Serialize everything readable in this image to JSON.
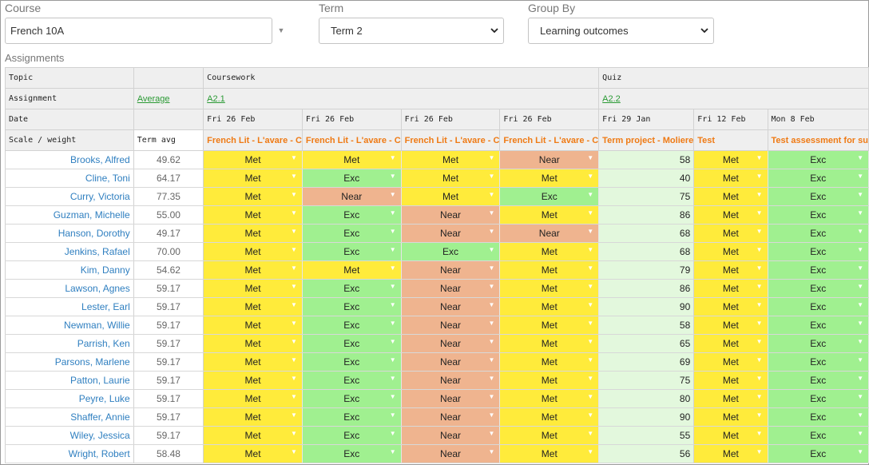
{
  "filters": {
    "course_label": "Course",
    "course_value": "French 10A",
    "term_label": "Term",
    "term_value": "Term 2",
    "group_label": "Group By",
    "group_value": "Learning outcomes"
  },
  "section_title": "Assignments",
  "header": {
    "topic_label": "Topic",
    "assignment_label": "Assignment",
    "date_label": "Date",
    "scale_label": "Scale / weight",
    "average_link": "Average",
    "term_avg_label": "Term avg",
    "topics": [
      "Coursework",
      "Quiz"
    ],
    "assignment_links": [
      "A2.1",
      "A2.2"
    ],
    "dates": [
      "Fri 26 Feb",
      "Fri 26 Feb",
      "Fri 26 Feb",
      "Fri 26 Feb",
      "Fri 29 Jan",
      "Fri 12 Feb",
      "Mon 8 Feb"
    ],
    "scales": [
      "French Lit - L'avare - C",
      "French Lit - L'avare - C",
      "French Lit - L'avare - C",
      "French Lit - L'avare - C",
      "Term project - Moliere",
      "Test",
      "Test assessment for su"
    ]
  },
  "students": [
    {
      "name": "Brooks, Alfred",
      "avg": "49.62",
      "g": [
        "Met",
        "Met",
        "Met",
        "Near"
      ],
      "score": "58",
      "t": [
        "Met",
        "Exc"
      ]
    },
    {
      "name": "Cline, Toni",
      "avg": "64.17",
      "g": [
        "Met",
        "Exc",
        "Met",
        "Met"
      ],
      "score": "40",
      "t": [
        "Met",
        "Exc"
      ]
    },
    {
      "name": "Curry, Victoria",
      "avg": "77.35",
      "g": [
        "Met",
        "Near",
        "Met",
        "Exc"
      ],
      "score": "75",
      "t": [
        "Met",
        "Exc"
      ]
    },
    {
      "name": "Guzman, Michelle",
      "avg": "55.00",
      "g": [
        "Met",
        "Exc",
        "Near",
        "Met"
      ],
      "score": "86",
      "t": [
        "Met",
        "Exc"
      ]
    },
    {
      "name": "Hanson, Dorothy",
      "avg": "49.17",
      "g": [
        "Met",
        "Exc",
        "Near",
        "Near"
      ],
      "score": "68",
      "t": [
        "Met",
        "Exc"
      ]
    },
    {
      "name": "Jenkins, Rafael",
      "avg": "70.00",
      "g": [
        "Met",
        "Exc",
        "Exc",
        "Met"
      ],
      "score": "68",
      "t": [
        "Met",
        "Exc"
      ]
    },
    {
      "name": "Kim, Danny",
      "avg": "54.62",
      "g": [
        "Met",
        "Met",
        "Near",
        "Met"
      ],
      "score": "79",
      "t": [
        "Met",
        "Exc"
      ]
    },
    {
      "name": "Lawson, Agnes",
      "avg": "59.17",
      "g": [
        "Met",
        "Exc",
        "Near",
        "Met"
      ],
      "score": "86",
      "t": [
        "Met",
        "Exc"
      ]
    },
    {
      "name": "Lester, Earl",
      "avg": "59.17",
      "g": [
        "Met",
        "Exc",
        "Near",
        "Met"
      ],
      "score": "90",
      "t": [
        "Met",
        "Exc"
      ]
    },
    {
      "name": "Newman, Willie",
      "avg": "59.17",
      "g": [
        "Met",
        "Exc",
        "Near",
        "Met"
      ],
      "score": "58",
      "t": [
        "Met",
        "Exc"
      ]
    },
    {
      "name": "Parrish, Ken",
      "avg": "59.17",
      "g": [
        "Met",
        "Exc",
        "Near",
        "Met"
      ],
      "score": "65",
      "t": [
        "Met",
        "Exc"
      ]
    },
    {
      "name": "Parsons, Marlene",
      "avg": "59.17",
      "g": [
        "Met",
        "Exc",
        "Near",
        "Met"
      ],
      "score": "69",
      "t": [
        "Met",
        "Exc"
      ]
    },
    {
      "name": "Patton, Laurie",
      "avg": "59.17",
      "g": [
        "Met",
        "Exc",
        "Near",
        "Met"
      ],
      "score": "75",
      "t": [
        "Met",
        "Exc"
      ]
    },
    {
      "name": "Peyre, Luke",
      "avg": "59.17",
      "g": [
        "Met",
        "Exc",
        "Near",
        "Met"
      ],
      "score": "80",
      "t": [
        "Met",
        "Exc"
      ]
    },
    {
      "name": "Shaffer, Annie",
      "avg": "59.17",
      "g": [
        "Met",
        "Exc",
        "Near",
        "Met"
      ],
      "score": "90",
      "t": [
        "Met",
        "Exc"
      ]
    },
    {
      "name": "Wiley, Jessica",
      "avg": "59.17",
      "g": [
        "Met",
        "Exc",
        "Near",
        "Met"
      ],
      "score": "55",
      "t": [
        "Met",
        "Exc"
      ]
    },
    {
      "name": "Wright, Robert",
      "avg": "58.48",
      "g": [
        "Met",
        "Exc",
        "Near",
        "Met"
      ],
      "score": "56",
      "t": [
        "Met",
        "Exc"
      ]
    }
  ],
  "grade_colors": {
    "Met": "#ffeb3b",
    "Exc": "#a0f090",
    "Near": "#efb48f",
    "score_bg": "#e3f8dd"
  },
  "icons": {
    "select_chevron": "chevron-down-icon",
    "cell_dropdown": "triangle-down-icon"
  }
}
